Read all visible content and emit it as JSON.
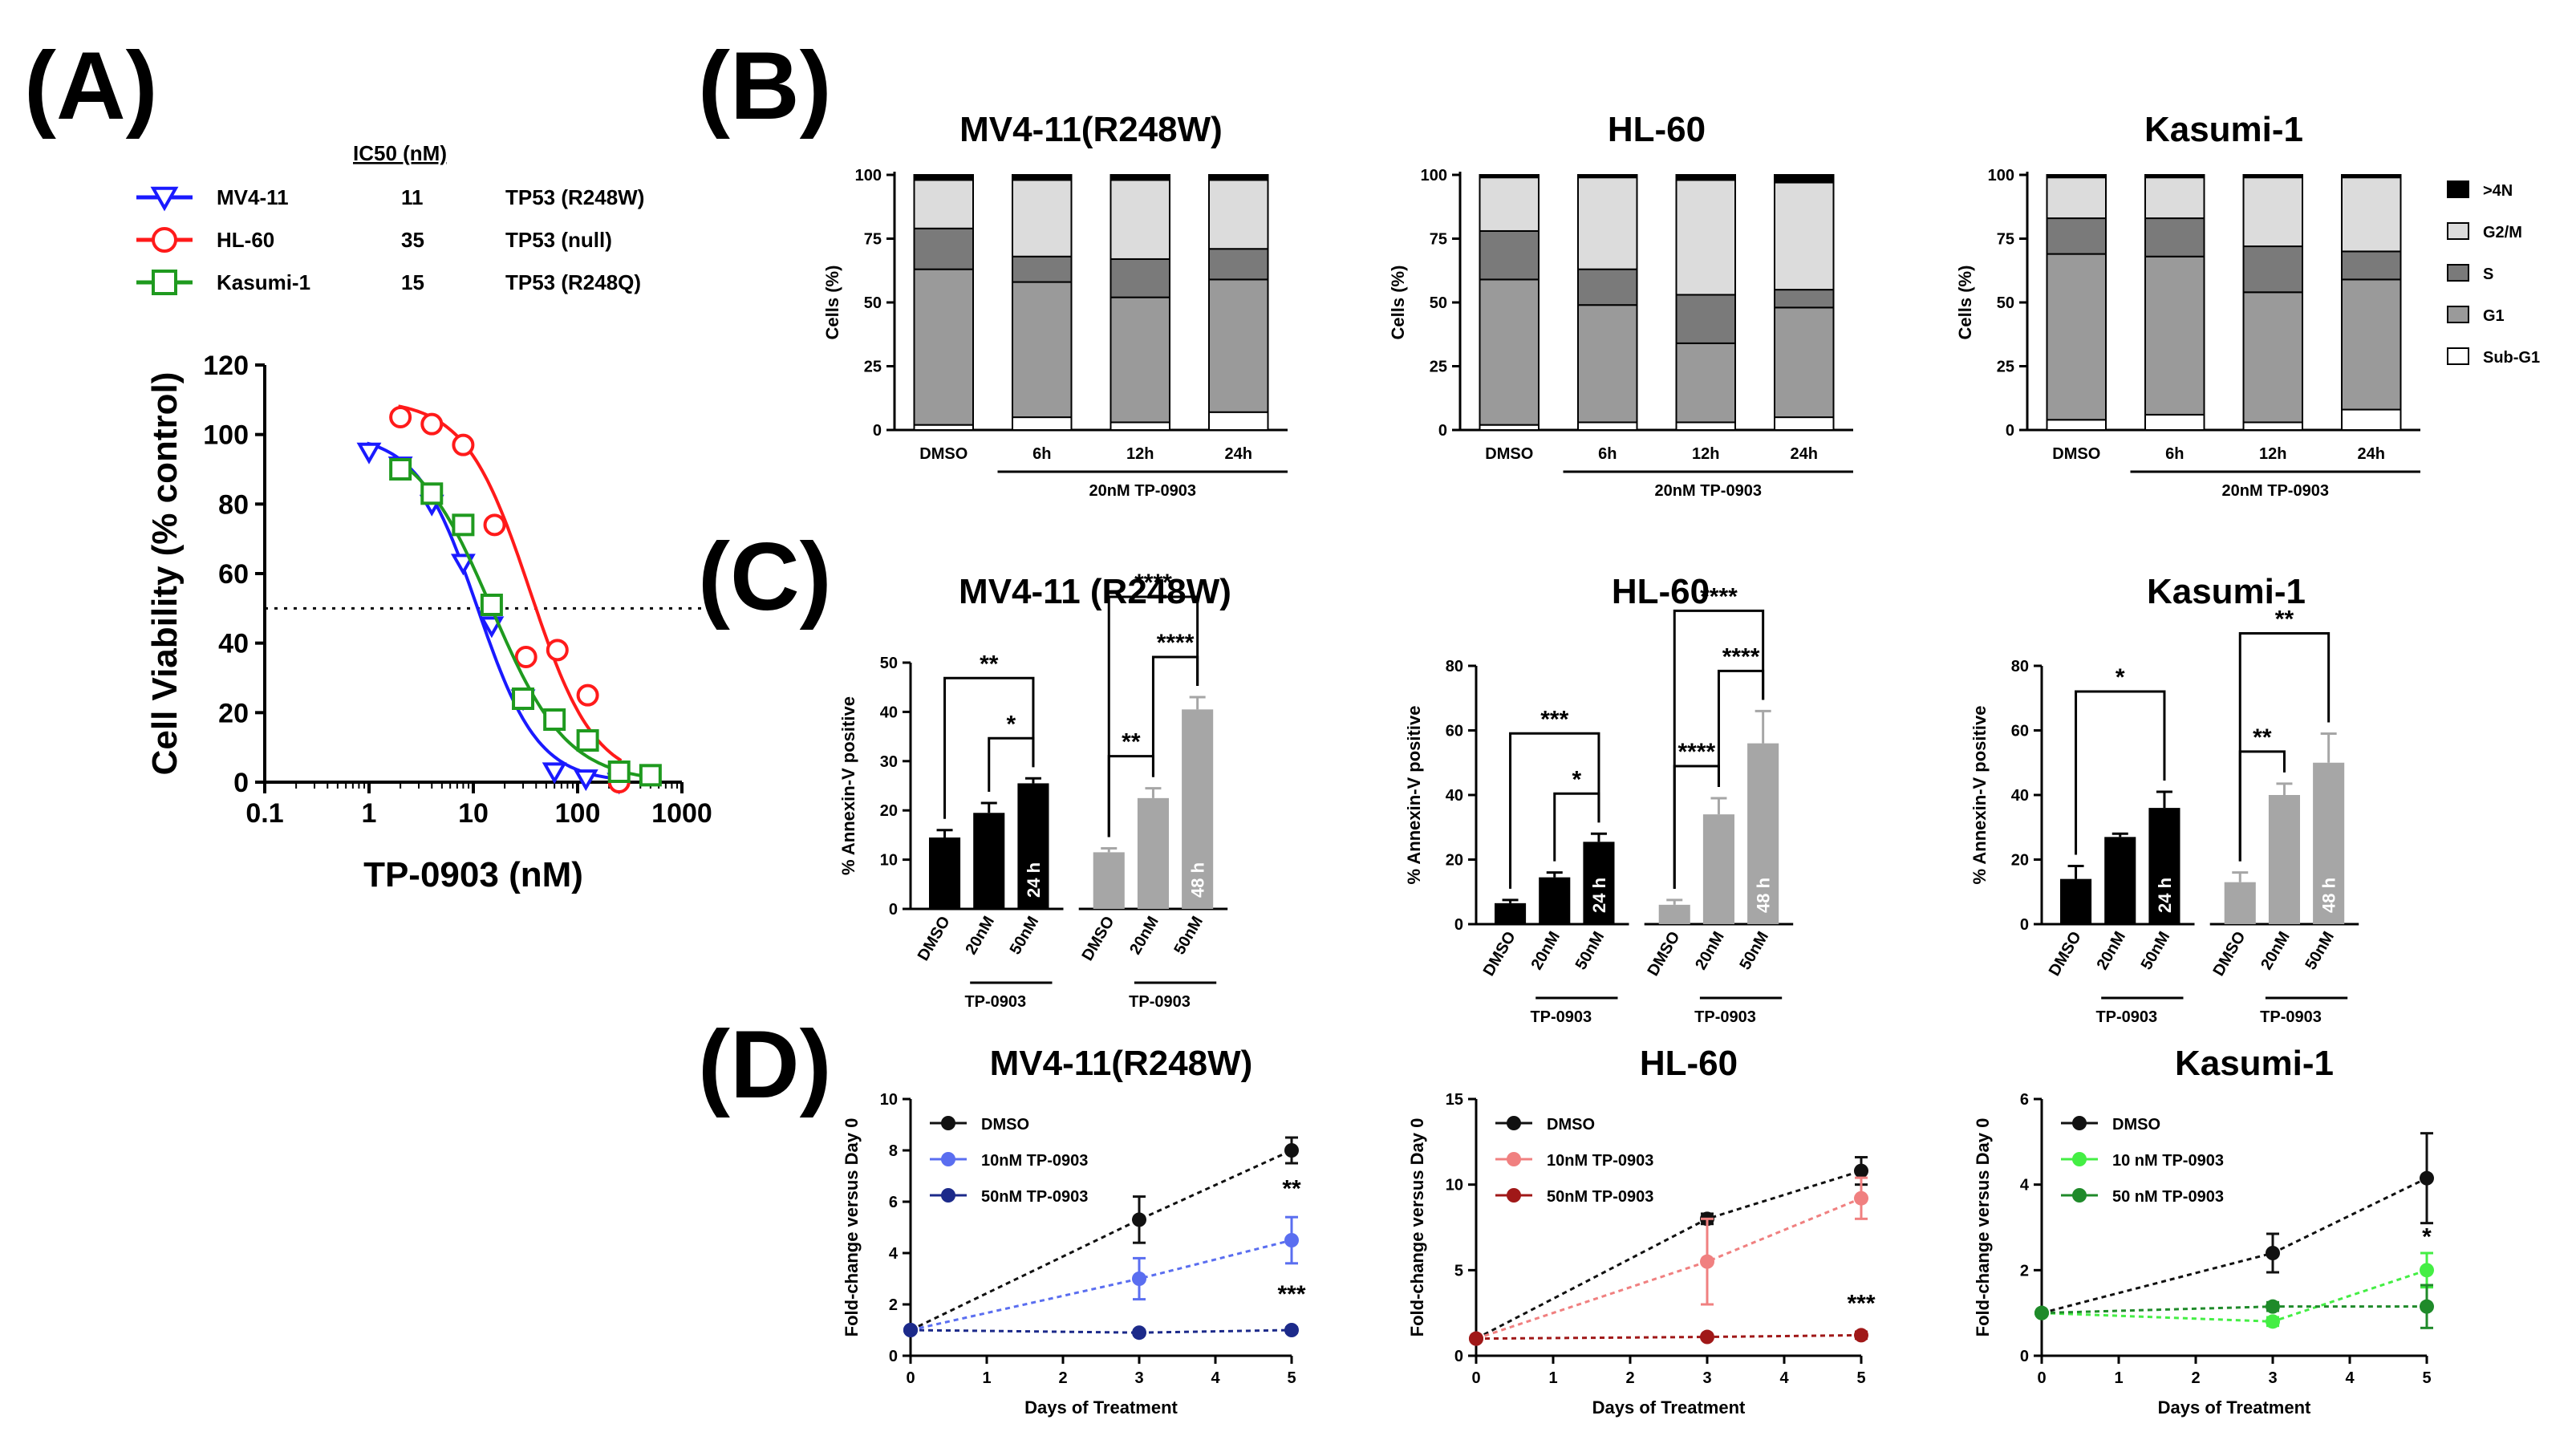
{
  "panel_labels": {
    "a": "(A)",
    "b": "(B)",
    "c": "(C)",
    "d": "(D)"
  },
  "ic50": {
    "header": "IC50 (nM)",
    "rows": [
      {
        "name": "MV4-11",
        "ic50": "11",
        "tp53": "TP53 (R248W)",
        "color": "#1a1aff"
      },
      {
        "name": "HL-60",
        "ic50": "35",
        "tp53": "TP53 (null)",
        "color": "#ff1a1a"
      },
      {
        "name": "Kasumi-1",
        "ic50": "15",
        "tp53": "TP53 (R248Q)",
        "color": "#1f9a1f"
      }
    ]
  },
  "chart_data": [
    {
      "id": "A",
      "type": "scatter",
      "title": "",
      "xlabel": "TP-0903 (nM)",
      "ylabel": "Cell Viability (% control)",
      "xscale": "log",
      "xlim": [
        0.1,
        1000
      ],
      "ylim": [
        0,
        120
      ],
      "xticks": [
        "0.1",
        "1",
        "10",
        "100",
        "1000"
      ],
      "yticks": [
        "0",
        "20",
        "40",
        "60",
        "80",
        "100",
        "120"
      ],
      "reference_line": 50,
      "series": [
        {
          "name": "MV4-11",
          "color": "#1a1aff",
          "marker": "triangle-down",
          "x": [
            1,
            2,
            4,
            8,
            15,
            30,
            60,
            120,
            250
          ],
          "y": [
            95,
            91,
            80,
            63,
            45,
            24,
            3,
            1,
            0
          ],
          "fit": {
            "top": 100,
            "bottom": 0,
            "ic50": 11,
            "hill": 1.5
          }
        },
        {
          "name": "HL-60",
          "color": "#ff1a1a",
          "marker": "circle",
          "x": [
            2,
            4,
            8,
            16,
            32,
            64,
            125,
            250
          ],
          "y": [
            105,
            103,
            97,
            74,
            36,
            38,
            25,
            0
          ],
          "fit": {
            "top": 110,
            "bottom": 0,
            "ic50": 35,
            "hill": 1.4
          }
        },
        {
          "name": "Kasumi-1",
          "color": "#1f9a1f",
          "marker": "square",
          "x": [
            2,
            4,
            8,
            15,
            30,
            60,
            125,
            250,
            500
          ],
          "y": [
            90,
            83,
            74,
            51,
            24,
            18,
            12,
            3,
            2
          ],
          "fit": {
            "top": 100,
            "bottom": 0,
            "ic50": 15,
            "hill": 1.2
          }
        }
      ]
    },
    {
      "id": "B1",
      "type": "bar",
      "title": "MV4-11(R248W)",
      "ylabel": "Cells (%)",
      "ylim": [
        0,
        100
      ],
      "yticks": [
        "0",
        "25",
        "50",
        "75",
        "100"
      ],
      "categories": [
        "DMSO",
        "6h",
        "12h",
        "24h"
      ],
      "treatment_label": "20nM TP-0903",
      "series": [
        {
          "name": "Sub-G1",
          "values": [
            2,
            5,
            3,
            7
          ]
        },
        {
          "name": "G1",
          "values": [
            61,
            53,
            49,
            52
          ]
        },
        {
          "name": "S",
          "values": [
            16,
            10,
            15,
            12
          ]
        },
        {
          "name": "G2/M",
          "values": [
            19,
            30,
            31,
            27
          ]
        },
        {
          "name": ">4N",
          "values": [
            2,
            2,
            2,
            2
          ]
        }
      ]
    },
    {
      "id": "B2",
      "type": "bar",
      "title": "HL-60",
      "ylabel": "Cells (%)",
      "ylim": [
        0,
        100
      ],
      "yticks": [
        "0",
        "25",
        "50",
        "75",
        "100"
      ],
      "categories": [
        "DMSO",
        "6h",
        "12h",
        "24h"
      ],
      "treatment_label": "20nM TP-0903",
      "series": [
        {
          "name": "Sub-G1",
          "values": [
            2,
            3,
            3,
            5
          ]
        },
        {
          "name": "G1",
          "values": [
            57,
            46,
            31,
            43
          ]
        },
        {
          "name": "S",
          "values": [
            19,
            14,
            19,
            7
          ]
        },
        {
          "name": "G2/M",
          "values": [
            21,
            36,
            45,
            42
          ]
        },
        {
          "name": ">4N",
          "values": [
            1,
            1,
            2,
            3
          ]
        }
      ]
    },
    {
      "id": "B3",
      "type": "bar",
      "title": "Kasumi-1",
      "ylabel": "Cells (%)",
      "ylim": [
        0,
        100
      ],
      "yticks": [
        "0",
        "25",
        "50",
        "75",
        "100"
      ],
      "categories": [
        "DMSO",
        "6h",
        "12h",
        "24h"
      ],
      "treatment_label": "20nM TP-0903",
      "series": [
        {
          "name": "Sub-G1",
          "values": [
            4,
            6,
            3,
            8
          ]
        },
        {
          "name": "G1",
          "values": [
            65,
            62,
            51,
            51
          ]
        },
        {
          "name": "S",
          "values": [
            14,
            15,
            18,
            11
          ]
        },
        {
          "name": "G2/M",
          "values": [
            16,
            16,
            27,
            29
          ]
        },
        {
          "name": ">4N",
          "values": [
            1,
            1,
            1,
            1
          ]
        }
      ],
      "legend": [
        ">4N",
        "G2/M",
        "S",
        "G1",
        "Sub-G1"
      ]
    },
    {
      "id": "C1",
      "type": "bar",
      "title": "MV4-11 (R248W)",
      "ylabel": "% Annexin-V positive",
      "ylim": [
        0,
        50
      ],
      "yticks": [
        "0",
        "10",
        "20",
        "30",
        "40",
        "50"
      ],
      "categories": [
        "DMSO",
        "20nM",
        "50nM",
        "DMSO",
        "20nM",
        "50nM"
      ],
      "values": [
        14.5,
        19.5,
        25.5,
        11.5,
        22.5,
        40.5
      ],
      "errors": [
        1.5,
        2,
        1,
        0.8,
        2,
        2.5
      ],
      "groups": [
        "24 h",
        "48 h"
      ],
      "group_label": "TP-0903",
      "significance": [
        {
          "from": 0,
          "to": 2,
          "label": "**"
        },
        {
          "from": 1,
          "to": 2,
          "label": "*"
        },
        {
          "from": 3,
          "to": 5,
          "label": "****"
        },
        {
          "from": 4,
          "to": 5,
          "label": "****"
        },
        {
          "from": 3,
          "to": 4,
          "label": "**"
        }
      ]
    },
    {
      "id": "C2",
      "type": "bar",
      "title": "HL-60",
      "ylabel": "% Annexin-V positive",
      "ylim": [
        0,
        80
      ],
      "yticks": [
        "0",
        "20",
        "40",
        "60",
        "80"
      ],
      "categories": [
        "DMSO",
        "20nM",
        "50nM",
        "DMSO",
        "20nM",
        "50nM"
      ],
      "values": [
        6.5,
        14.5,
        25.5,
        6,
        34,
        56
      ],
      "errors": [
        1,
        1.5,
        2.5,
        1.5,
        5,
        10
      ],
      "groups": [
        "24 h",
        "48 h"
      ],
      "group_label": "TP-0903",
      "significance": [
        {
          "from": 0,
          "to": 2,
          "label": "***"
        },
        {
          "from": 1,
          "to": 2,
          "label": "*"
        },
        {
          "from": 3,
          "to": 5,
          "label": "****"
        },
        {
          "from": 4,
          "to": 5,
          "label": "****"
        },
        {
          "from": 3,
          "to": 4,
          "label": "****"
        }
      ]
    },
    {
      "id": "C3",
      "type": "bar",
      "title": "Kasumi-1",
      "ylabel": "% Annexin-V positive",
      "ylim": [
        0,
        80
      ],
      "yticks": [
        "0",
        "20",
        "40",
        "60",
        "80"
      ],
      "categories": [
        "DMSO",
        "20nM",
        "50nM",
        "DMSO",
        "20nM",
        "50nM"
      ],
      "values": [
        14,
        27,
        36,
        13,
        40,
        50
      ],
      "errors": [
        4,
        1,
        5,
        3,
        3.5,
        9
      ],
      "groups": [
        "24 h",
        "48 h"
      ],
      "group_label": "TP-0903",
      "significance": [
        {
          "from": 0,
          "to": 2,
          "label": "*"
        },
        {
          "from": 3,
          "to": 5,
          "label": "**"
        },
        {
          "from": 3,
          "to": 4,
          "label": "**"
        }
      ]
    },
    {
      "id": "D1",
      "type": "line",
      "title": "MV4-11(R248W)",
      "xlabel": "Days of  Treatment",
      "ylabel": "Fold-change versus Day 0",
      "xlim": [
        0,
        5
      ],
      "ylim": [
        0,
        10
      ],
      "xticks": [
        "0",
        "1",
        "2",
        "3",
        "4",
        "5"
      ],
      "yticks": [
        "0",
        "2",
        "4",
        "6",
        "8",
        "10"
      ],
      "x": [
        0,
        3,
        5
      ],
      "series": [
        {
          "name": "DMSO",
          "color": "#111111",
          "values": [
            1,
            5.3,
            8
          ],
          "errors": [
            0,
            0.9,
            0.5
          ]
        },
        {
          "name": "10nM  TP-0903",
          "color": "#5a6ef0",
          "values": [
            1,
            3,
            4.5
          ],
          "errors": [
            0,
            0.8,
            0.9
          ]
        },
        {
          "name": "50nM  TP-0903",
          "color": "#1c2a8a",
          "values": [
            1,
            0.9,
            1
          ],
          "errors": [
            0,
            0.1,
            0.1
          ]
        }
      ],
      "annotations": [
        {
          "x": 5,
          "y": 6.2,
          "text": "**"
        },
        {
          "x": 5,
          "y": 2.1,
          "text": "***"
        }
      ]
    },
    {
      "id": "D2",
      "type": "line",
      "title": "HL-60",
      "xlabel": "Days of  Treatment",
      "ylabel": "Fold-change versus Day 0",
      "xlim": [
        0,
        5
      ],
      "ylim": [
        0,
        15
      ],
      "xticks": [
        "0",
        "1",
        "2",
        "3",
        "4",
        "5"
      ],
      "yticks": [
        "0",
        "5",
        "10",
        "15"
      ],
      "x": [
        0,
        3,
        5
      ],
      "series": [
        {
          "name": "DMSO",
          "color": "#111111",
          "values": [
            1,
            8,
            10.8
          ],
          "errors": [
            0,
            0.3,
            0.8
          ]
        },
        {
          "name": "10nM  TP-0903",
          "color": "#f08080",
          "values": [
            1,
            5.5,
            9.2
          ],
          "errors": [
            0,
            2.5,
            1.2
          ]
        },
        {
          "name": "50nM  TP-0903",
          "color": "#a01818",
          "values": [
            1,
            1.1,
            1.2
          ],
          "errors": [
            0,
            0.1,
            0.2
          ]
        }
      ],
      "annotations": [
        {
          "x": 5,
          "y": 2.6,
          "text": "***"
        }
      ]
    },
    {
      "id": "D3",
      "type": "line",
      "title": "Kasumi-1",
      "xlabel": "Days of  Treatment",
      "ylabel": "Fold-change versus Day 0",
      "xlim": [
        0,
        5
      ],
      "ylim": [
        0,
        6
      ],
      "xticks": [
        "0",
        "1",
        "2",
        "3",
        "4",
        "5"
      ],
      "yticks": [
        "0",
        "2",
        "4",
        "6"
      ],
      "x": [
        0,
        3,
        5
      ],
      "series": [
        {
          "name": "DMSO",
          "color": "#111111",
          "values": [
            1,
            2.4,
            4.15
          ],
          "errors": [
            0,
            0.45,
            1.05
          ]
        },
        {
          "name": "10 nM TP-0903",
          "color": "#44ee44",
          "values": [
            1,
            0.8,
            2
          ],
          "errors": [
            0,
            0.1,
            0.4
          ]
        },
        {
          "name": "50 nM TP-0903",
          "color": "#1f8a2a",
          "values": [
            1,
            1.15,
            1.15
          ],
          "errors": [
            0,
            0.1,
            0.5
          ]
        }
      ],
      "annotations": [
        {
          "x": 5,
          "y": 2.6,
          "text": "*"
        }
      ]
    }
  ]
}
